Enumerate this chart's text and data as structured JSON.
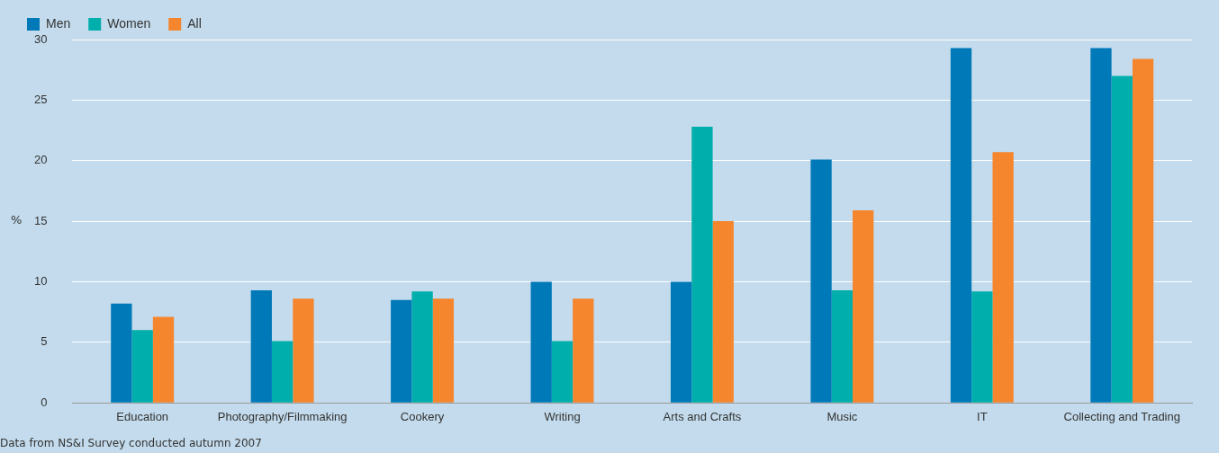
{
  "chart_data": {
    "type": "bar",
    "ylabel": "%",
    "categories": [
      "Education",
      "Photography/Filmmaking",
      "Cookery",
      "Writing",
      "Arts and Crafts",
      "Music",
      "IT",
      "Collecting and Trading"
    ],
    "series": [
      {
        "name": "Men",
        "color": "#0079b8",
        "values": [
          8.2,
          9.3,
          8.5,
          10.0,
          10.0,
          20.1,
          29.3,
          29.3
        ]
      },
      {
        "name": "Women",
        "color": "#00aeab",
        "values": [
          6.0,
          5.1,
          9.2,
          5.1,
          22.8,
          9.3,
          9.2,
          27.0
        ]
      },
      {
        "name": "All",
        "color": "#f5862e",
        "values": [
          7.1,
          8.6,
          8.6,
          8.6,
          15.0,
          15.9,
          20.7,
          28.4
        ]
      }
    ],
    "ylim": [
      0,
      30
    ],
    "yticks": [
      0,
      5,
      10,
      15,
      20,
      25,
      30
    ],
    "grid": "y",
    "legend": "top left",
    "annotations": [
      "Data from NS&I Survey conducted autumn 2007"
    ]
  }
}
